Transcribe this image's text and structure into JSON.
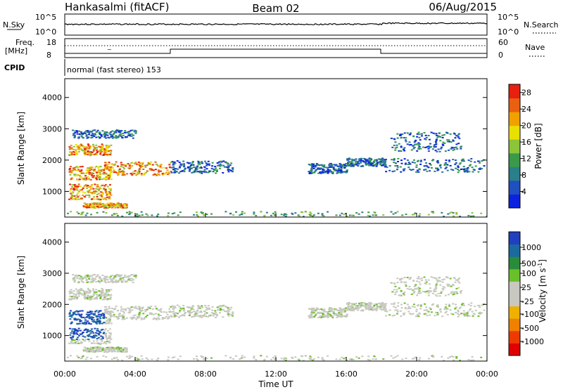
{
  "header": {
    "station": "Hankasalmi (fitACF)",
    "beam": "Beam 02",
    "date": "06/Aug/2015"
  },
  "strip": {
    "nsky_label": "N.Sky",
    "nsearch_label": "N.Search",
    "noise_ticks": [
      "10^5",
      "10^0"
    ],
    "freq_label_1": "Freq.",
    "freq_label_2": "[MHz]",
    "freq_ticks": [
      "18",
      "8"
    ],
    "nave_ticks": [
      "60",
      "0"
    ],
    "nave_label": "Nave",
    "cpid_label": "CPID",
    "cpid_text": "normal (fast stereo) 153"
  },
  "colors": {
    "power_scale": [
      "#0b22e0",
      "#1f4fc0",
      "#2a7f8a",
      "#3a9a4a",
      "#8cc43a",
      "#e8e000",
      "#f0a000",
      "#e86010",
      "#e82010"
    ],
    "velocity_scale": [
      "#e00000",
      "#ee3a00",
      "#f08000",
      "#f0b000",
      "#c8c8c0",
      "#c8c8c0",
      "#6ac02a",
      "#2a8c3a",
      "#1a6aa0",
      "#2040c0"
    ]
  },
  "chart_data": [
    {
      "type": "heatmap",
      "title": "",
      "quantity": "Power",
      "xlabel": "",
      "ylabel": "Slant Range [km]",
      "xlim": [
        "00:00",
        "24:00"
      ],
      "ylim": [
        180,
        4600
      ],
      "yticks": [
        "4000",
        "3000",
        "2000",
        "1000"
      ],
      "colorbar": {
        "label": "Power [dB]",
        "ticks": [
          "28",
          "24",
          "20",
          "16",
          "12",
          "8",
          "4"
        ],
        "range": [
          0,
          30
        ]
      }
    },
    {
      "type": "heatmap",
      "title": "",
      "quantity": "Velocity",
      "xlabel": "Time UT",
      "ylabel": "Slant Range [km]",
      "xlim": [
        "00:00",
        "24:00"
      ],
      "ylim": [
        180,
        4600
      ],
      "xticks": [
        "00:00",
        "04:00",
        "08:00",
        "12:00",
        "16:00",
        "20:00",
        "00:00"
      ],
      "yticks": [
        "4000",
        "3000",
        "2000",
        "1000"
      ],
      "colorbar": {
        "label": "Velocity [m s^-1]",
        "ticks": [
          "1000",
          "500",
          "100",
          "25",
          "-25",
          "-100",
          "-500",
          "-1000"
        ]
      }
    }
  ]
}
